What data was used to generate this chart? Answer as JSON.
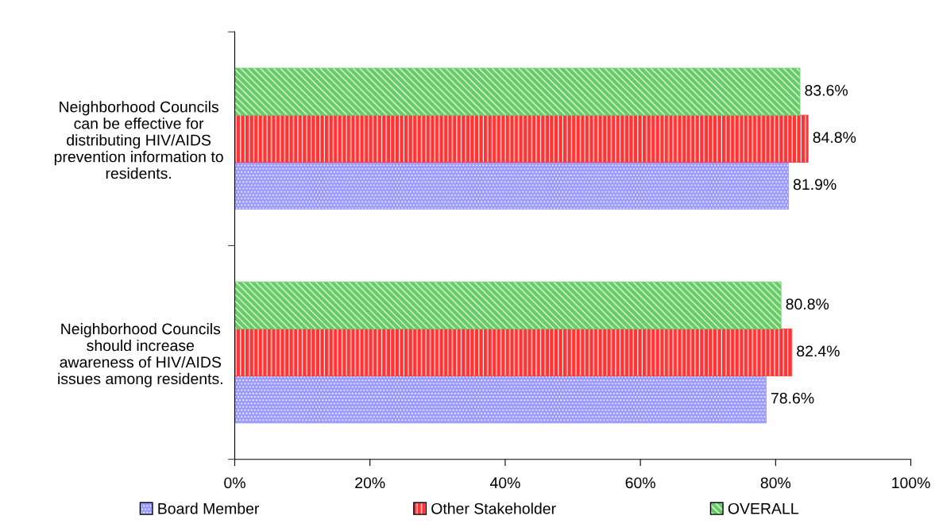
{
  "chart_data": {
    "type": "bar",
    "orientation": "horizontal",
    "categories": [
      "Neighborhood Councils\ncan be effective for\ndistributing HIV/AIDS\nprevention information to\nresidents.",
      "Neighborhood Councils\nshould increase\nawareness of HIV/AIDS\nissues among residents."
    ],
    "series": [
      {
        "name": "Board Member",
        "color": "#9999ff",
        "values": [
          81.9,
          78.6
        ],
        "value_labels": [
          "81.9%",
          "78.6%"
        ]
      },
      {
        "name": "Other Stakeholder",
        "color": "#ff3333",
        "values": [
          84.8,
          82.4
        ],
        "value_labels": [
          "84.8%",
          "82.4%"
        ]
      },
      {
        "name": "OVERALL",
        "color": "#66cc66",
        "values": [
          83.6,
          80.8
        ],
        "value_labels": [
          "83.6%",
          "80.8%"
        ]
      }
    ],
    "xlim": [
      0,
      100
    ],
    "xticks": [
      {
        "value": 0,
        "label": "0%"
      },
      {
        "value": 20,
        "label": "20%"
      },
      {
        "value": 40,
        "label": "40%"
      },
      {
        "value": 60,
        "label": "60%"
      },
      {
        "value": 80,
        "label": "80%"
      },
      {
        "value": 100,
        "label": "100%"
      }
    ],
    "grid": false,
    "legend": "bottom"
  }
}
